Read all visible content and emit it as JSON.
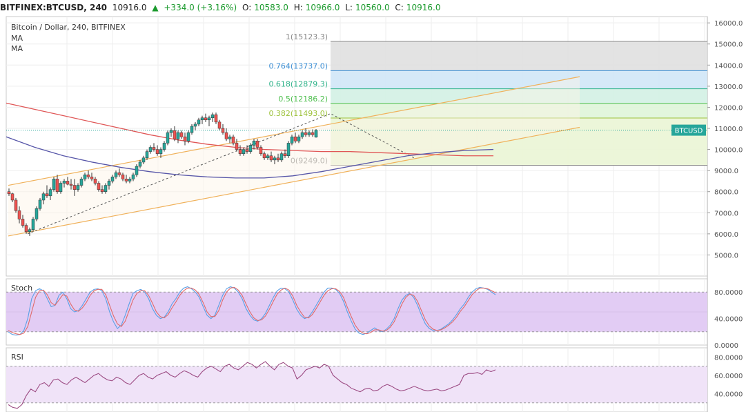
{
  "header": {
    "symbol": "BITFINEX:BTCUSD, 240",
    "price": "10916.0",
    "change_arrow": "▲",
    "change": "+334.0 (+3.16%)",
    "o_key": "O:",
    "o_val": "10583.0",
    "h_key": "H:",
    "h_val": "10966.0",
    "l_key": "L:",
    "l_val": "10560.0",
    "c_key": "C:",
    "c_val": "10916.0"
  },
  "legend": {
    "title": "Bitcoin / Dollar, 240, BITFINEX",
    "ma1": "MA",
    "ma2": "MA"
  },
  "colors": {
    "up": "#26a69a",
    "down": "#ef5350",
    "ma_red": "#e05656",
    "ma_blue": "#5655a8",
    "channel": "#f0b15a",
    "stoch_fill": "#e2ccf4",
    "rsi_fill": "#f0e3f8",
    "stoch_k": "#5aa0e6",
    "stoch_d": "#e06a6a",
    "rsi_line": "#9c4b83"
  },
  "chart_data": [
    {
      "type": "candlestick",
      "title": "Bitcoin / Dollar, 240, BITFINEX",
      "price_axis": {
        "ticks": [
          "16000.0",
          "15000.0",
          "14000.0",
          "13000.0",
          "12000.0",
          "11000.0",
          "10000.0",
          "9000.0",
          "8000.0",
          "7000.0",
          "6000.0",
          "5000.0"
        ],
        "range": [
          4000,
          16300
        ]
      },
      "last_price_label": "BTCUSD",
      "last_price": 10916,
      "candles": [
        [
          8000,
          8150,
          7800,
          7900
        ],
        [
          7900,
          7950,
          7500,
          7600
        ],
        [
          7600,
          7700,
          7000,
          7100
        ],
        [
          7100,
          7300,
          6500,
          6700
        ],
        [
          6700,
          6900,
          6300,
          6400
        ],
        [
          6400,
          6500,
          6000,
          6100
        ],
        [
          6100,
          6300,
          5900,
          6200
        ],
        [
          6200,
          6800,
          6100,
          6700
        ],
        [
          6700,
          7300,
          6600,
          7200
        ],
        [
          7200,
          7700,
          7100,
          7600
        ],
        [
          7600,
          8000,
          7400,
          7900
        ],
        [
          7900,
          8300,
          7700,
          7800
        ],
        [
          7800,
          8200,
          7600,
          8100
        ],
        [
          8100,
          8700,
          8000,
          8600
        ],
        [
          8600,
          8800,
          7900,
          8000
        ],
        [
          8000,
          8500,
          7900,
          8400
        ],
        [
          8400,
          8600,
          8200,
          8500
        ],
        [
          8500,
          8700,
          8300,
          8350
        ],
        [
          8350,
          8600,
          8100,
          8300
        ],
        [
          8300,
          8600,
          7800,
          8100
        ],
        [
          8100,
          8400,
          8000,
          8300
        ],
        [
          8300,
          8700,
          8200,
          8600
        ],
        [
          8600,
          8900,
          8500,
          8800
        ],
        [
          8800,
          9000,
          8600,
          8700
        ],
        [
          8700,
          8900,
          8500,
          8600
        ],
        [
          8600,
          8700,
          8300,
          8400
        ],
        [
          8400,
          8500,
          8000,
          8100
        ],
        [
          8100,
          8300,
          7900,
          8000
        ],
        [
          8000,
          8400,
          7900,
          8300
        ],
        [
          8300,
          8600,
          8100,
          8500
        ],
        [
          8500,
          8800,
          8400,
          8700
        ],
        [
          8700,
          9000,
          8600,
          8900
        ],
        [
          8900,
          9100,
          8700,
          8800
        ],
        [
          8800,
          8900,
          8500,
          8600
        ],
        [
          8600,
          8800,
          8400,
          8500
        ],
        [
          8500,
          8700,
          8400,
          8600
        ],
        [
          8600,
          8900,
          8500,
          8800
        ],
        [
          8800,
          9300,
          8700,
          9200
        ],
        [
          9200,
          9500,
          9100,
          9400
        ],
        [
          9400,
          9700,
          9300,
          9600
        ],
        [
          9600,
          10000,
          9500,
          9900
        ],
        [
          9900,
          10200,
          9800,
          10100
        ],
        [
          10100,
          10300,
          9900,
          10000
        ],
        [
          10000,
          10200,
          9700,
          9800
        ],
        [
          9800,
          10100,
          9600,
          10000
        ],
        [
          10000,
          10400,
          9900,
          10300
        ],
        [
          10300,
          10900,
          10200,
          10800
        ],
        [
          10800,
          11000,
          10600,
          10900
        ],
        [
          10900,
          11100,
          10400,
          10500
        ],
        [
          10500,
          10900,
          10300,
          10800
        ],
        [
          10800,
          10900,
          10500,
          10600
        ],
        [
          10600,
          10800,
          10200,
          10400
        ],
        [
          10400,
          10900,
          10300,
          10800
        ],
        [
          10800,
          11200,
          10700,
          11100
        ],
        [
          11100,
          11300,
          10900,
          11200
        ],
        [
          11200,
          11500,
          11100,
          11400
        ],
        [
          11400,
          11600,
          11200,
          11500
        ],
        [
          11500,
          11700,
          11300,
          11400
        ],
        [
          11400,
          11600,
          11100,
          11500
        ],
        [
          11500,
          11750,
          11300,
          11650
        ],
        [
          11650,
          11750,
          11200,
          11300
        ],
        [
          11300,
          11400,
          10900,
          11000
        ],
        [
          11000,
          11200,
          10700,
          10800
        ],
        [
          10800,
          11000,
          10400,
          10500
        ],
        [
          10500,
          10700,
          10300,
          10600
        ],
        [
          10600,
          10700,
          10200,
          10300
        ],
        [
          10300,
          10500,
          9900,
          10000
        ],
        [
          10000,
          10200,
          9700,
          9800
        ],
        [
          9800,
          10100,
          9700,
          10000
        ],
        [
          10000,
          10200,
          9800,
          9900
        ],
        [
          9900,
          10300,
          9800,
          10200
        ],
        [
          10200,
          10500,
          10000,
          10400
        ],
        [
          10400,
          10500,
          10000,
          10100
        ],
        [
          10100,
          10200,
          9700,
          9800
        ],
        [
          9800,
          9900,
          9500,
          9600
        ],
        [
          9600,
          9800,
          9500,
          9700
        ],
        [
          9700,
          9900,
          9400,
          9500
        ],
        [
          9500,
          9700,
          9300,
          9600
        ],
        [
          9600,
          9800,
          9400,
          9500
        ],
        [
          9500,
          9900,
          9400,
          9800
        ],
        [
          9800,
          10000,
          9600,
          9700
        ],
        [
          9700,
          10400,
          9600,
          10300
        ],
        [
          10300,
          10700,
          10200,
          10600
        ],
        [
          10600,
          10800,
          10300,
          10400
        ],
        [
          10400,
          10700,
          10300,
          10600
        ],
        [
          10600,
          10900,
          10500,
          10800
        ],
        [
          10800,
          11000,
          10600,
          10700
        ],
        [
          10700,
          10900,
          10600,
          10800
        ],
        [
          10800,
          10950,
          10600,
          10700
        ],
        [
          10583,
          10966,
          10560,
          10916
        ]
      ],
      "moving_averages": [
        {
          "name": "MA",
          "color": "#e05656",
          "values": [
            [
              0,
              12200
            ],
            [
              10,
              11900
            ],
            [
              20,
              11600
            ],
            [
              30,
              11300
            ],
            [
              40,
              11000
            ],
            [
              50,
              10700
            ],
            [
              60,
              10450
            ],
            [
              70,
              10250
            ],
            [
              80,
              10100
            ],
            [
              90,
              10000
            ],
            [
              100,
              9950
            ],
            [
              110,
              9900
            ],
            [
              120,
              9900
            ],
            [
              130,
              9850
            ],
            [
              140,
              9800
            ],
            [
              150,
              9750
            ],
            [
              160,
              9700
            ],
            [
              170,
              9700
            ]
          ]
        },
        {
          "name": "MA",
          "color": "#5655a8",
          "values": [
            [
              0,
              10600
            ],
            [
              10,
              10100
            ],
            [
              20,
              9700
            ],
            [
              30,
              9400
            ],
            [
              40,
              9150
            ],
            [
              50,
              8950
            ],
            [
              60,
              8800
            ],
            [
              70,
              8700
            ],
            [
              80,
              8650
            ],
            [
              90,
              8650
            ],
            [
              100,
              8750
            ],
            [
              110,
              8950
            ],
            [
              120,
              9200
            ],
            [
              130,
              9450
            ],
            [
              140,
              9700
            ],
            [
              150,
              9850
            ],
            [
              160,
              9950
            ],
            [
              170,
              10000
            ]
          ]
        }
      ],
      "fibonacci": [
        {
          "label": "1(15123.3)",
          "price": 15123.3,
          "color": "#888888",
          "fill": "#e0e0e0"
        },
        {
          "label": "0.764(13737.0)",
          "price": 13737.0,
          "color": "#3d8fd4",
          "fill": "#d0e7f7"
        },
        {
          "label": "0.618(12879.3)",
          "price": 12879.3,
          "color": "#2fb38a",
          "fill": "#d3f1e4"
        },
        {
          "label": "0.5(12186.2)",
          "price": 12186.2,
          "color": "#4cbe4c",
          "fill": "#dff5d9"
        },
        {
          "label": "0.382(11493.0)",
          "price": 11493.0,
          "color": "#9dc23b",
          "fill": "#eaf5d5"
        },
        {
          "label": "0(9249.0)",
          "price": 9249.0,
          "color": "#8a8a8a",
          "fill": "#f1f7e4"
        }
      ]
    },
    {
      "type": "line",
      "title": "Stoch",
      "ticks": [
        "80.0000",
        "40.0000",
        "0.0000"
      ],
      "range": [
        0,
        100
      ],
      "bands": [
        20,
        80
      ],
      "series": [
        {
          "name": "%K",
          "color": "#5aa0e6",
          "values": [
            20,
            16,
            15,
            16,
            22,
            40,
            70,
            82,
            85,
            82,
            70,
            58,
            60,
            75,
            80,
            70,
            55,
            50,
            52,
            60,
            70,
            80,
            84,
            85,
            82,
            70,
            50,
            35,
            25,
            30,
            45,
            62,
            78,
            82,
            84,
            80,
            70,
            55,
            45,
            40,
            42,
            50,
            62,
            70,
            80,
            86,
            88,
            85,
            80,
            72,
            58,
            45,
            40,
            45,
            60,
            75,
            85,
            88,
            86,
            80,
            70,
            55,
            45,
            38,
            36,
            40,
            48,
            60,
            72,
            82,
            86,
            85,
            80,
            68,
            54,
            45,
            40,
            42,
            50,
            60,
            70,
            80,
            86,
            86,
            84,
            78,
            66,
            50,
            36,
            24,
            18,
            16,
            18,
            22,
            26,
            22,
            20,
            24,
            30,
            40,
            55,
            68,
            75,
            78,
            72,
            60,
            45,
            32,
            25,
            22,
            22,
            24,
            28,
            32,
            38,
            46,
            55,
            62,
            72,
            80,
            85,
            87,
            86,
            84,
            80,
            76
          ]
        },
        {
          "name": "%D",
          "color": "#e06a6a",
          "values": [
            22,
            19,
            17,
            16,
            18,
            28,
            50,
            72,
            82,
            83,
            76,
            64,
            60,
            68,
            76,
            74,
            62,
            53,
            51,
            56,
            64,
            75,
            82,
            84,
            84,
            76,
            60,
            44,
            32,
            28,
            36,
            52,
            68,
            78,
            82,
            82,
            75,
            63,
            50,
            43,
            41,
            46,
            56,
            65,
            75,
            82,
            86,
            86,
            83,
            76,
            64,
            50,
            43,
            43,
            52,
            68,
            80,
            86,
            87,
            83,
            75,
            62,
            50,
            41,
            37,
            38,
            44,
            54,
            66,
            77,
            83,
            86,
            83,
            74,
            60,
            50,
            42,
            41,
            46,
            55,
            65,
            75,
            82,
            85,
            85,
            81,
            72,
            57,
            43,
            30,
            22,
            18,
            17,
            19,
            23,
            23,
            21,
            22,
            27,
            35,
            48,
            62,
            72,
            77,
            75,
            66,
            52,
            38,
            29,
            24,
            22,
            23,
            26,
            30,
            35,
            42,
            51,
            58,
            67,
            76,
            82,
            86,
            86,
            85,
            82,
            79
          ]
        }
      ]
    },
    {
      "type": "line",
      "title": "RSI",
      "ticks": [
        "80.0000",
        "60.0000",
        "40.0000"
      ],
      "range": [
        20,
        90
      ],
      "bands": [
        30,
        70
      ],
      "series": [
        {
          "name": "RSI",
          "color": "#9c4b83",
          "values": [
            28,
            25,
            24,
            28,
            38,
            45,
            42,
            50,
            52,
            48,
            55,
            56,
            52,
            50,
            55,
            58,
            55,
            52,
            56,
            60,
            62,
            58,
            55,
            54,
            58,
            56,
            52,
            50,
            55,
            60,
            62,
            58,
            56,
            60,
            62,
            64,
            60,
            58,
            62,
            65,
            63,
            60,
            58,
            64,
            68,
            70,
            67,
            64,
            70,
            72,
            68,
            66,
            70,
            74,
            72,
            68,
            72,
            75,
            70,
            66,
            72,
            74,
            70,
            68,
            56,
            60,
            66,
            68,
            70,
            68,
            72,
            70,
            60,
            56,
            52,
            50,
            46,
            44,
            42,
            45,
            46,
            43,
            44,
            48,
            50,
            48,
            45,
            43,
            44,
            46,
            48,
            46,
            44,
            43,
            44,
            45,
            43,
            44,
            46,
            48,
            50,
            60,
            62,
            62,
            63,
            61,
            66,
            64,
            66
          ]
        }
      ]
    }
  ]
}
